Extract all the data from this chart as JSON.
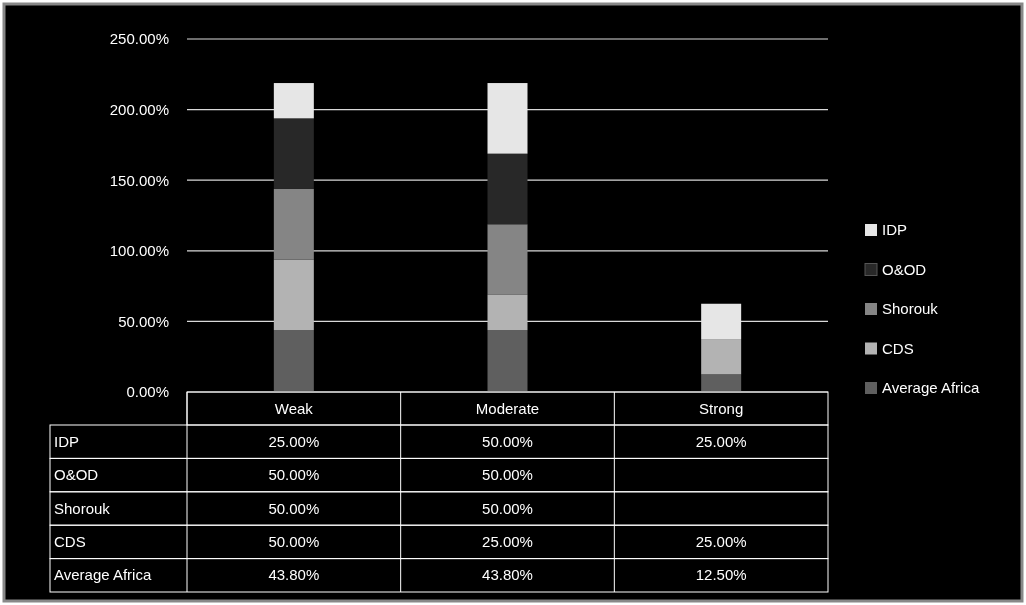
{
  "chart_data": {
    "type": "bar",
    "stacked": true,
    "categories": [
      "Weak",
      "Moderate",
      "Strong"
    ],
    "series": [
      {
        "name": "Average Africa",
        "color": "#5f5f5f",
        "values": [
          43.8,
          43.8,
          12.5
        ],
        "value_labels": [
          "43.80%",
          "43.80%",
          "12.50%"
        ]
      },
      {
        "name": "CDS",
        "color": "#b3b3b3",
        "values": [
          50,
          25,
          25
        ],
        "value_labels": [
          "50.00%",
          "25.00%",
          "25.00%"
        ]
      },
      {
        "name": "Shorouk",
        "color": "#858585",
        "values": [
          50,
          50,
          null
        ],
        "value_labels": [
          "50.00%",
          "50.00%",
          null
        ]
      },
      {
        "name": "O&OD",
        "color": "#282828",
        "values": [
          50,
          50,
          null
        ],
        "value_labels": [
          "50.00%",
          "50.00%",
          null
        ]
      },
      {
        "name": "IDP",
        "color": "#e6e6e6",
        "values": [
          25,
          50,
          25
        ],
        "value_labels": [
          "25.00%",
          "50.00%",
          "25.00%"
        ]
      }
    ],
    "ylim": [
      0,
      250
    ],
    "yticks": [
      {
        "value": 0,
        "label": "0.00%"
      },
      {
        "value": 50,
        "label": "50.00%"
      },
      {
        "value": 100,
        "label": "100.00%"
      },
      {
        "value": 150,
        "label": "150.00%"
      },
      {
        "value": 200,
        "label": "200.00%"
      },
      {
        "value": 250,
        "label": "250.00%"
      }
    ],
    "grid": "y",
    "legend": "right"
  }
}
